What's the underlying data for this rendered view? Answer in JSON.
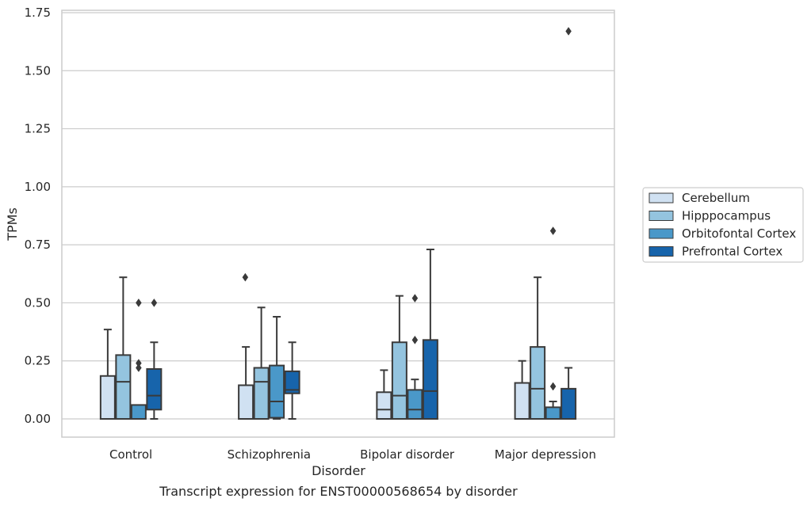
{
  "chart_data": {
    "type": "box",
    "xlabel": "Disorder",
    "ylabel": "TPMs",
    "caption": "Transcript expression for ENST00000568654 by disorder",
    "ylim": [
      -0.08,
      1.76
    ],
    "yticks": [
      {
        "value": 0.0,
        "label": "0.00"
      },
      {
        "value": 0.25,
        "label": "0.25"
      },
      {
        "value": 0.5,
        "label": "0.50"
      },
      {
        "value": 0.75,
        "label": "0.75"
      },
      {
        "value": 1.0,
        "label": "1.00"
      },
      {
        "value": 1.25,
        "label": "1.25"
      },
      {
        "value": 1.5,
        "label": "1.50"
      },
      {
        "value": 1.75,
        "label": "1.75"
      }
    ],
    "grid": "horizontal",
    "legend_position": "right",
    "categories": [
      "Control",
      "Schizophrenia",
      "Bipolar disorder",
      "Major depression"
    ],
    "series": [
      {
        "name": "Cerebellum",
        "color": "#d0e1f2",
        "boxes": [
          {
            "min": 0.0,
            "q1": 0.0,
            "median": 0.0,
            "q3": 0.185,
            "max": 0.385,
            "outliers": []
          },
          {
            "min": 0.0,
            "q1": 0.0,
            "median": 0.0,
            "q3": 0.145,
            "max": 0.31,
            "outliers": []
          },
          {
            "min": 0.0,
            "q1": 0.0,
            "median": 0.04,
            "q3": 0.115,
            "max": 0.21,
            "outliers": []
          },
          {
            "min": 0.0,
            "q1": 0.0,
            "median": 0.0,
            "q3": 0.155,
            "max": 0.25,
            "outliers": []
          }
        ]
      },
      {
        "name": "Hipppocampus",
        "color": "#94c4df",
        "boxes": [
          {
            "min": 0.0,
            "q1": 0.0,
            "median": 0.16,
            "q3": 0.275,
            "max": 0.61,
            "outliers": []
          },
          {
            "min": 0.0,
            "q1": 0.0,
            "median": 0.16,
            "q3": 0.22,
            "max": 0.48,
            "outliers": []
          },
          {
            "min": 0.0,
            "q1": 0.0,
            "median": 0.1,
            "q3": 0.33,
            "max": 0.53,
            "outliers": []
          },
          {
            "min": 0.0,
            "q1": 0.0,
            "median": 0.13,
            "q3": 0.31,
            "max": 0.61,
            "outliers": []
          }
        ]
      },
      {
        "name": "Orbitofontal Cortex",
        "color": "#4a98c9",
        "boxes": [
          {
            "min": 0.0,
            "q1": 0.0,
            "median": 0.0,
            "q3": 0.06,
            "max": 0.06,
            "outliers": [
              0.5,
              0.24,
              0.22
            ]
          },
          {
            "min": 0.0,
            "q1": 0.005,
            "median": 0.075,
            "q3": 0.23,
            "max": 0.44,
            "outliers": []
          },
          {
            "min": 0.0,
            "q1": 0.0,
            "median": 0.04,
            "q3": 0.125,
            "max": 0.17,
            "outliers": [
              0.52,
              0.34
            ]
          },
          {
            "min": 0.0,
            "q1": 0.0,
            "median": 0.0,
            "q3": 0.05,
            "max": 0.075,
            "outliers": [
              0.81,
              0.14
            ]
          }
        ]
      },
      {
        "name": "Prefrontal Cortex",
        "color": "#1764ab",
        "boxes": [
          {
            "min": 0.0,
            "q1": 0.04,
            "median": 0.1,
            "q3": 0.215,
            "max": 0.33,
            "outliers": [
              0.5
            ]
          },
          {
            "min": 0.0,
            "q1": 0.11,
            "median": 0.125,
            "q3": 0.205,
            "max": 0.33,
            "outliers": []
          },
          {
            "min": 0.0,
            "q1": 0.0,
            "median": 0.12,
            "q3": 0.34,
            "max": 0.73,
            "outliers": []
          },
          {
            "min": 0.0,
            "q1": 0.0,
            "median": 0.0,
            "q3": 0.13,
            "max": 0.22,
            "outliers": [
              1.67
            ]
          }
        ]
      }
    ],
    "extra_outliers": [
      {
        "category": "Schizophrenia",
        "value": 0.61
      }
    ]
  },
  "colors": {
    "grid": "#cccccc",
    "frame": "#cccccc",
    "box_edge": "#3a3a3a",
    "text": "#262626"
  }
}
